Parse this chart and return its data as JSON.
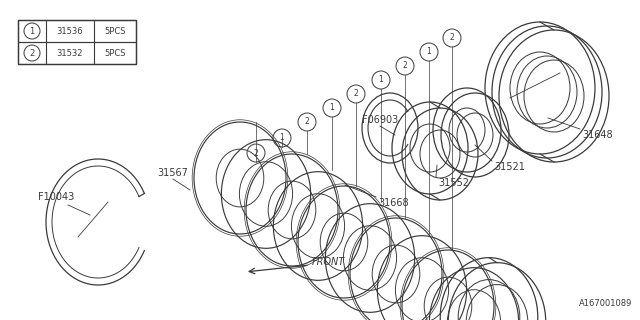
{
  "bg_color": "#ffffff",
  "fig_width": 6.4,
  "fig_height": 3.2,
  "dpi": 100,
  "legend_rows": [
    {
      "num": "1",
      "part": "31536",
      "qty": "5PCS"
    },
    {
      "num": "2",
      "part": "31532",
      "qty": "5PCS"
    }
  ],
  "line_color": "#3a3a3a",
  "text_color": "#3a3a3a",
  "font_size": 7,
  "doc_number": "A167001089"
}
